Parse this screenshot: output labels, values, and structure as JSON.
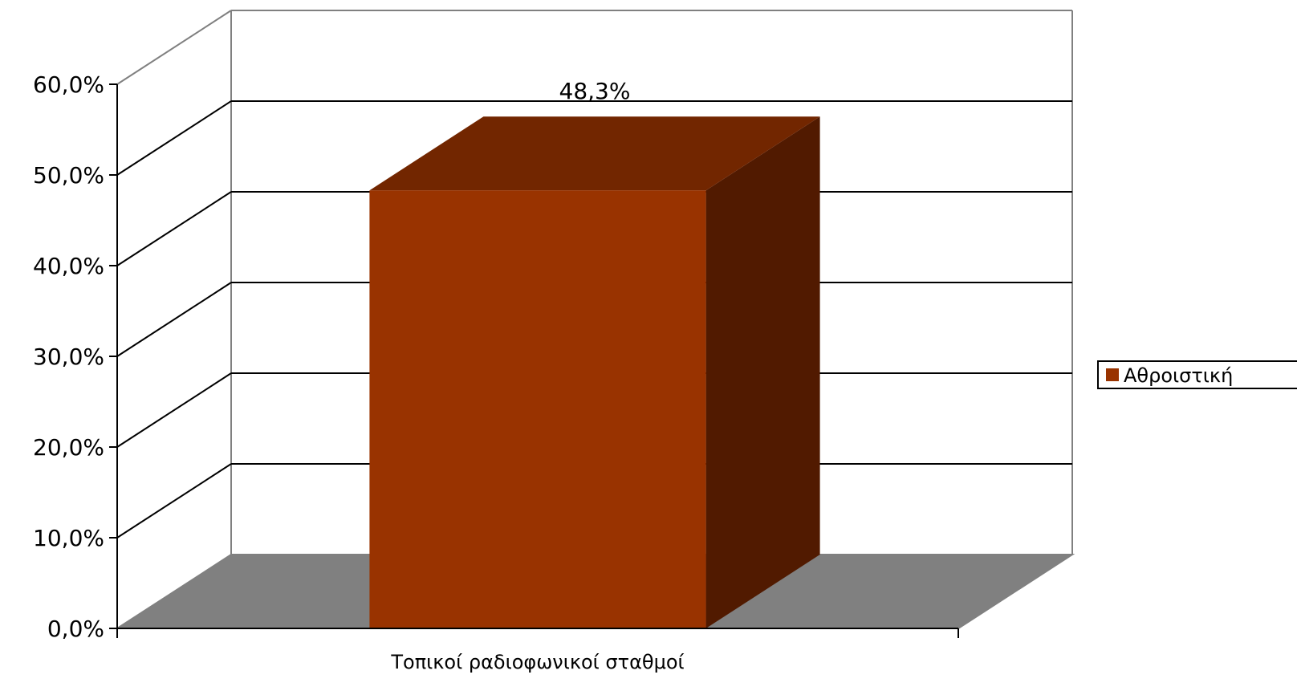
{
  "chart_data": {
    "type": "bar",
    "categories": [
      "Τοπικοί ραδιοφωνικοί σταθμοί"
    ],
    "series": [
      {
        "name": "Αθροιστική",
        "values": [
          48.3
        ],
        "data_labels": [
          "48,3%"
        ]
      }
    ],
    "ytick_labels": [
      "0,0%",
      "10,0%",
      "20,0%",
      "30,0%",
      "40,0%",
      "50,0%",
      "60,0%"
    ],
    "ylim": [
      0,
      60
    ],
    "grid": true,
    "legend_position": "right",
    "three_d": true,
    "colors": {
      "bar_front": "#993300",
      "bar_top": "#722600",
      "bar_side": "#511A00",
      "floor": "#808080",
      "gridline": "#000000",
      "frame": "#808080"
    }
  }
}
